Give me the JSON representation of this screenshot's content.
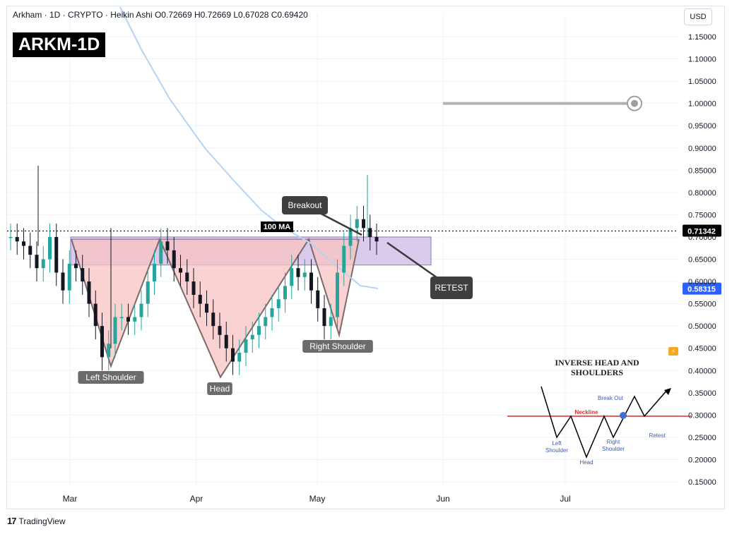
{
  "header": {
    "symbol": "Arkham",
    "interval": "1D",
    "exchange": "CRYPTO",
    "chart_style": "Heikin Ashi",
    "ohlc_text": "Arkham · 1D · CRYPTO · Heikin Ashi  O0.72669  H0.72669  L0.67028  C0.69420"
  },
  "badge": "ARKM-1D",
  "currency_button": "USD",
  "footer": {
    "logo_glyph": "17",
    "brand": "TradingView"
  },
  "colors": {
    "bull": "#26a69a",
    "bear": "#131722",
    "ma": "#b5d3f3",
    "pattern_fill": "#f9c3c3",
    "zone_fill": "#cdb8e6",
    "neckline": "#7a6a6a",
    "price_tag_current": "#000000",
    "price_tag_ma": "#2962ff"
  },
  "chart_data": {
    "type": "candlestick",
    "title": "ARKM-1D",
    "y_axis": {
      "ticks": [
        "1.15000",
        "1.10000",
        "1.05000",
        "1.00000",
        "0.95000",
        "0.90000",
        "0.85000",
        "0.80000",
        "0.75000",
        "0.70000",
        "0.65000",
        "0.60000",
        "0.55000",
        "0.50000",
        "0.45000",
        "0.40000",
        "0.35000",
        "0.30000",
        "0.25000",
        "0.20000",
        "0.15000"
      ],
      "range": [
        0.1,
        1.2
      ]
    },
    "x_axis": {
      "ticks": [
        "Mar",
        "Apr",
        "May",
        "Jun",
        "Jul"
      ]
    },
    "candles_summary": [
      0.7,
      0.69,
      0.68,
      0.66,
      0.63,
      0.65,
      0.7,
      0.62,
      0.58,
      0.64,
      0.63,
      0.6,
      0.55,
      0.5,
      0.43,
      0.46,
      0.52,
      0.52,
      0.51,
      0.52,
      0.55,
      0.6,
      0.64,
      0.69,
      0.67,
      0.63,
      0.62,
      0.6,
      0.57,
      0.55,
      0.53,
      0.5,
      0.48,
      0.45,
      0.42,
      0.44,
      0.47,
      0.48,
      0.5,
      0.52,
      0.54,
      0.56,
      0.59,
      0.63,
      0.61,
      0.62,
      0.58,
      0.54,
      0.5,
      0.52,
      0.62,
      0.68,
      0.72,
      0.74,
      0.72,
      0.7,
      0.69
    ],
    "current_price": "0.71342",
    "ma_value": "0.58315",
    "ma_label": "100 MA",
    "target_level": 1.0,
    "annotations": [
      "Breakout",
      "RETEST",
      "Left Shoulder",
      "Head",
      "Right Shoulder"
    ],
    "pattern_points": [
      [
        0.695,
        "Mar"
      ],
      [
        0.41,
        "Left Shoulder"
      ],
      [
        0.695,
        "neck"
      ],
      [
        0.385,
        "Head"
      ],
      [
        0.695,
        "neck"
      ],
      [
        0.48,
        "Right Shoulder"
      ],
      [
        0.695,
        "Breakout"
      ]
    ]
  },
  "inset": {
    "title_line1": "INVERSE HEAD AND",
    "title_line2": "SHOULDERS",
    "neckline": "Neckline",
    "break_out": "Break Out",
    "left_shoulder_l1": "Left",
    "left_shoulder_l2": "Shoulder",
    "head": "Head",
    "right_shoulder_l1": "Right",
    "right_shoulder_l2": "Shoulder",
    "retest": "Retest"
  }
}
